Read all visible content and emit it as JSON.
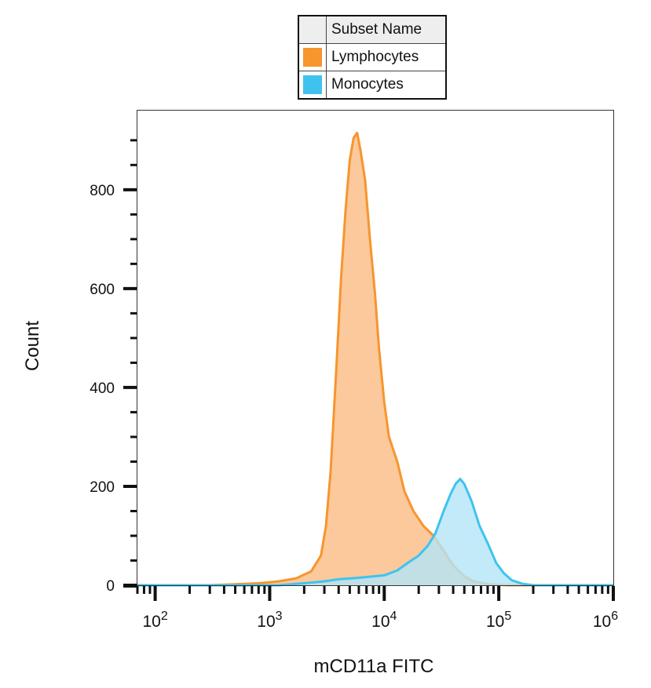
{
  "legend": {
    "header": "Subset Name",
    "items": [
      {
        "label": "Lymphocytes",
        "color": "#f7952e"
      },
      {
        "label": "Monocytes",
        "color": "#3fc3ee"
      }
    ]
  },
  "chart_data": {
    "type": "area",
    "xlabel": "mCD11a FITC",
    "ylabel": "Count",
    "xscale": "log",
    "xlim": [
      70,
      1000000
    ],
    "ylim": [
      0,
      960
    ],
    "x_ticks": [
      {
        "base": "10",
        "exp": "2",
        "value": 100
      },
      {
        "base": "10",
        "exp": "3",
        "value": 1000
      },
      {
        "base": "10",
        "exp": "4",
        "value": 10000
      },
      {
        "base": "10",
        "exp": "5",
        "value": 100000
      },
      {
        "base": "10",
        "exp": "6",
        "value": 1000000
      }
    ],
    "y_ticks": [
      {
        "label": "0",
        "value": 0
      },
      {
        "label": "200",
        "value": 200
      },
      {
        "label": "400",
        "value": 400
      },
      {
        "label": "600",
        "value": 600
      },
      {
        "label": "800",
        "value": 800
      }
    ],
    "series": [
      {
        "name": "Lymphocytes",
        "color": "#f7952e",
        "fill": "#fbc99b",
        "points": [
          [
            70,
            0
          ],
          [
            300,
            0
          ],
          [
            500,
            2
          ],
          [
            800,
            4
          ],
          [
            1200,
            8
          ],
          [
            1700,
            14
          ],
          [
            2300,
            28
          ],
          [
            2800,
            60
          ],
          [
            3100,
            120
          ],
          [
            3400,
            230
          ],
          [
            3800,
            430
          ],
          [
            4200,
            620
          ],
          [
            4600,
            760
          ],
          [
            5000,
            860
          ],
          [
            5400,
            905
          ],
          [
            5800,
            915
          ],
          [
            6200,
            880
          ],
          [
            6800,
            820
          ],
          [
            7500,
            700
          ],
          [
            8300,
            590
          ],
          [
            9000,
            480
          ],
          [
            10000,
            370
          ],
          [
            11000,
            300
          ],
          [
            13000,
            250
          ],
          [
            15000,
            190
          ],
          [
            18000,
            150
          ],
          [
            22000,
            120
          ],
          [
            27000,
            100
          ],
          [
            32000,
            75
          ],
          [
            40000,
            40
          ],
          [
            50000,
            18
          ],
          [
            60000,
            8
          ],
          [
            80000,
            2
          ],
          [
            120000,
            0
          ],
          [
            1000000,
            0
          ]
        ]
      },
      {
        "name": "Monocytes",
        "color": "#3fc3ee",
        "fill": "#b3e5f8",
        "points": [
          [
            70,
            0
          ],
          [
            1200,
            0
          ],
          [
            2000,
            4
          ],
          [
            3000,
            8
          ],
          [
            4000,
            12
          ],
          [
            6000,
            15
          ],
          [
            8000,
            18
          ],
          [
            10000,
            20
          ],
          [
            13000,
            30
          ],
          [
            16000,
            45
          ],
          [
            20000,
            60
          ],
          [
            24000,
            80
          ],
          [
            28000,
            105
          ],
          [
            33000,
            150
          ],
          [
            38000,
            185
          ],
          [
            42000,
            205
          ],
          [
            46000,
            215
          ],
          [
            50000,
            205
          ],
          [
            58000,
            170
          ],
          [
            68000,
            120
          ],
          [
            80000,
            85
          ],
          [
            95000,
            45
          ],
          [
            110000,
            25
          ],
          [
            130000,
            10
          ],
          [
            160000,
            3
          ],
          [
            200000,
            0
          ],
          [
            1000000,
            0
          ]
        ]
      }
    ]
  }
}
